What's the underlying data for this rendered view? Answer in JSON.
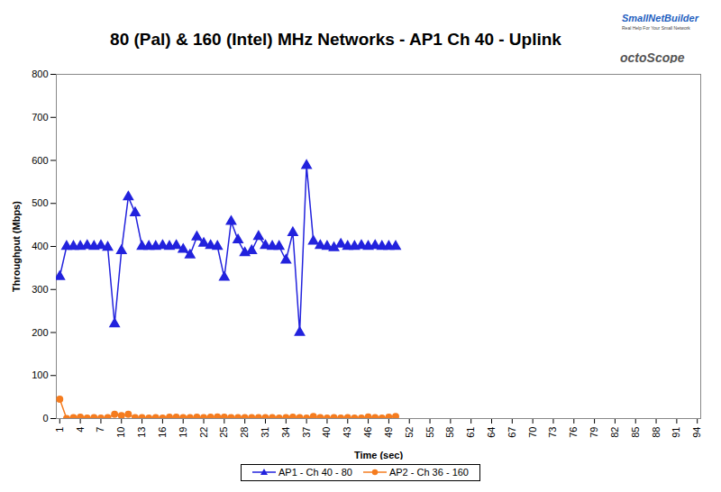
{
  "chart_data": {
    "type": "line",
    "title": "80 (Pal) & 160 (Intel) MHz Networks - AP1 Ch 40 - Uplink",
    "annotations": [
      "SmallNetBuilder",
      "Real Help For Your Small Network",
      "octoScope"
    ],
    "x_label": "Time (sec)",
    "y_label": "Throughput (Mbps)",
    "x": [
      1,
      2,
      3,
      4,
      5,
      6,
      7,
      8,
      9,
      10,
      11,
      12,
      13,
      14,
      15,
      16,
      17,
      18,
      19,
      20,
      21,
      22,
      23,
      24,
      25,
      26,
      27,
      28,
      29,
      30,
      31,
      32,
      33,
      34,
      35,
      36,
      37,
      38,
      39,
      40,
      41,
      42,
      43,
      44,
      45,
      46,
      47,
      48,
      49,
      50
    ],
    "xlim": [
      0.5,
      94.5
    ],
    "xticks": [
      1,
      4,
      7,
      10,
      13,
      16,
      19,
      22,
      25,
      28,
      31,
      34,
      37,
      40,
      43,
      46,
      49,
      52,
      55,
      58,
      61,
      64,
      67,
      70,
      73,
      76,
      79,
      82,
      85,
      88,
      91,
      94
    ],
    "ylim": [
      0,
      800
    ],
    "yticks": [
      0,
      100,
      200,
      300,
      400,
      500,
      600,
      700,
      800
    ],
    "grid": false,
    "legend": "bottom",
    "series": [
      {
        "name": "AP1 - Ch 40 - 80",
        "color": "#2222dd",
        "marker": "triangle",
        "values": [
          330,
          400,
          400,
          400,
          402,
          400,
          402,
          398,
          220,
          390,
          515,
          478,
          400,
          400,
          400,
          402,
          400,
          402,
          393,
          380,
          422,
          407,
          402,
          400,
          328,
          458,
          415,
          385,
          390,
          423,
          402,
          400,
          400,
          368,
          432,
          200,
          588,
          412,
          402,
          400,
          397,
          405,
          400,
          400,
          402,
          400,
          402,
          400,
          400,
          400
        ]
      },
      {
        "name": "AP2 - Ch 36 - 160",
        "color": "#f57c1f",
        "marker": "circle",
        "values": [
          45,
          0,
          2,
          3,
          1,
          2,
          1,
          2,
          10,
          7,
          10,
          2,
          2,
          1,
          2,
          1,
          3,
          3,
          2,
          2,
          3,
          2,
          3,
          4,
          3,
          2,
          2,
          2,
          2,
          2,
          2,
          2,
          1,
          2,
          3,
          2,
          1,
          5,
          2,
          1,
          2,
          1,
          2,
          1,
          1,
          4,
          2,
          1,
          3,
          5
        ]
      }
    ]
  }
}
